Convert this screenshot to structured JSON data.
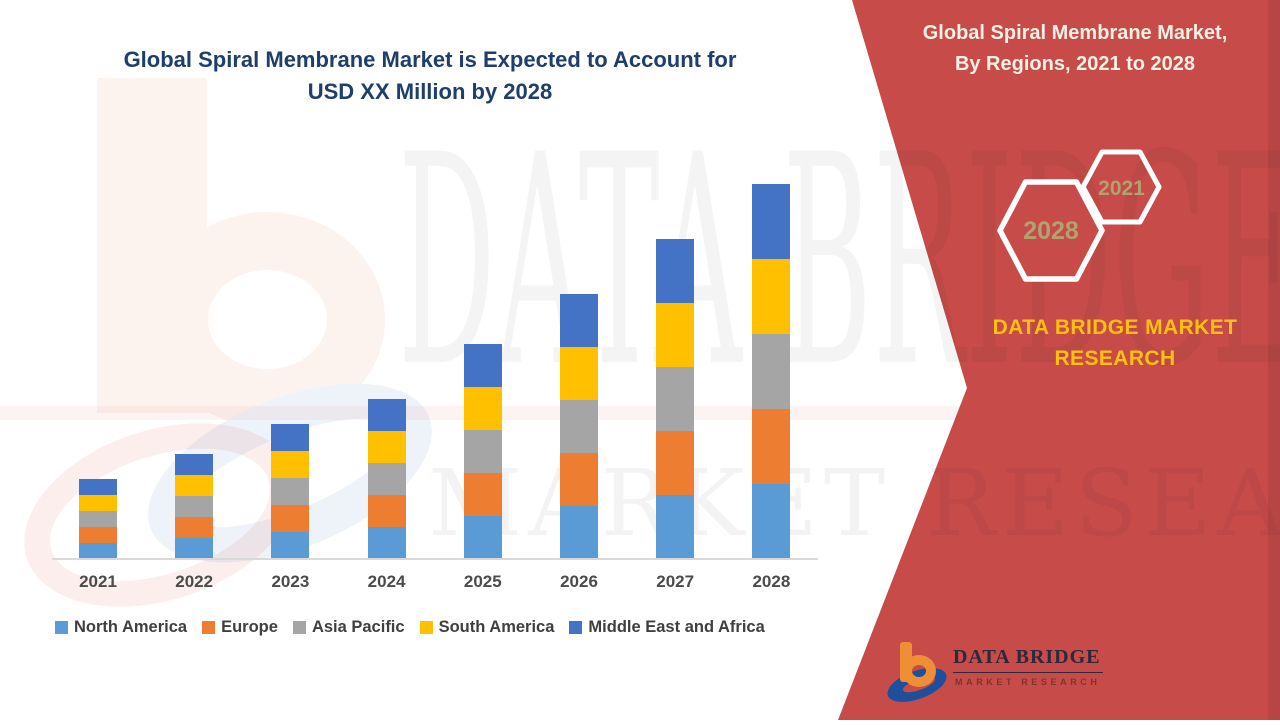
{
  "main_title": {
    "line1": "Global Spiral Membrane Market is Expected to Account for",
    "line2": "USD XX Million by 2028",
    "color": "#1F3E6B"
  },
  "chart_data": {
    "type": "bar",
    "stacked": true,
    "title": "Global Spiral Membrane Market is Expected to Account for USD XX Million by 2028",
    "categories": [
      "2021",
      "2022",
      "2023",
      "2024",
      "2025",
      "2026",
      "2027",
      "2028"
    ],
    "series": [
      {
        "name": "North America",
        "color": "#5B9BD5",
        "values": [
          16,
          21,
          27,
          32,
          43,
          53,
          64,
          75
        ]
      },
      {
        "name": "Europe",
        "color": "#ED7D31",
        "values": [
          16,
          21,
          27,
          32,
          43,
          53,
          64,
          75
        ]
      },
      {
        "name": "Asia Pacific",
        "color": "#A5A5A5",
        "values": [
          16,
          21,
          27,
          32,
          43,
          53,
          64,
          75
        ]
      },
      {
        "name": "South America",
        "color": "#FFC000",
        "values": [
          16,
          21,
          27,
          32,
          43,
          53,
          64,
          75
        ]
      },
      {
        "name": "Middle East and Africa",
        "color": "#4472C4",
        "values": [
          16,
          21,
          27,
          32,
          43,
          53,
          64,
          75
        ]
      }
    ],
    "value_axis": {
      "visible": false,
      "note": "No value axis or data labels shown; values are relative units estimated from bar heights (actual figures undisclosed as USD XX Million)"
    },
    "legend_position": "bottom",
    "gridlines": false,
    "xlabel": "",
    "ylabel": ""
  },
  "right_panel": {
    "background": "#C64B49",
    "heading_line1": "Global Spiral Membrane Market,",
    "heading_line2": "By Regions, 2021 to 2028",
    "hexagon_small_label": "2021",
    "hexagon_large_label": "2028",
    "hexagon_label_color": "#B2A26F",
    "brand_line1": "DATA BRIDGE MARKET",
    "brand_line2": "RESEARCH",
    "brand_color": "#FDC010"
  },
  "logo": {
    "title": "DATA BRIDGE",
    "subtitle": "MARKET RESEARCH"
  },
  "watermark": {
    "line1": "DATA BRIDGE",
    "line2": "MARKET RESEARCH"
  }
}
